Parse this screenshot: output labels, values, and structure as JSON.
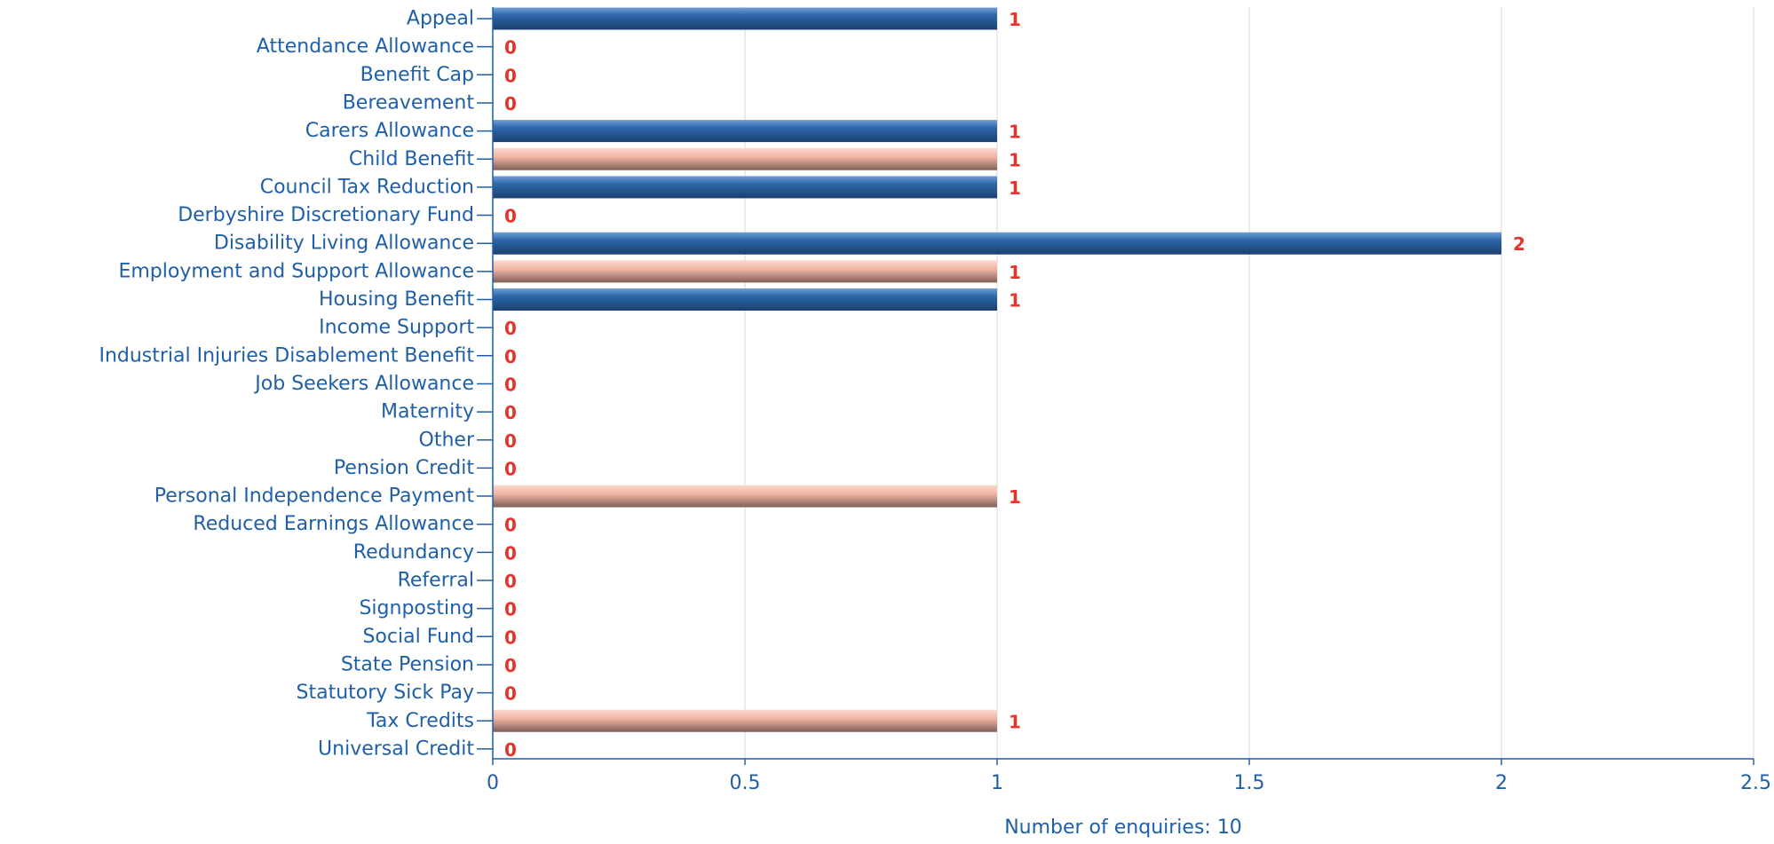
{
  "chart_data": {
    "type": "bar",
    "orientation": "horizontal",
    "categories": [
      "Appeal",
      "Attendance Allowance",
      "Benefit Cap",
      "Bereavement",
      "Carers Allowance",
      "Child Benefit",
      "Council Tax Reduction",
      "Derbyshire Discretionary Fund",
      "Disability Living Allowance",
      "Employment and Support Allowance",
      "Housing Benefit",
      "Income Support",
      "Industrial Injuries Disablement Benefit",
      "Job Seekers Allowance",
      "Maternity",
      "Other",
      "Pension Credit",
      "Personal Independence Payment",
      "Reduced Earnings Allowance",
      "Redundancy",
      "Referral",
      "Signposting",
      "Social Fund",
      "State Pension",
      "Statutory Sick Pay",
      "Tax Credits",
      "Universal Credit"
    ],
    "values": [
      1,
      0,
      0,
      0,
      1,
      1,
      1,
      0,
      2,
      1,
      1,
      0,
      0,
      0,
      0,
      0,
      0,
      1,
      0,
      0,
      0,
      0,
      0,
      0,
      0,
      1,
      0
    ],
    "bar_colors": [
      "blue",
      "blue",
      "blue",
      "blue",
      "blue",
      "salmon",
      "blue",
      "blue",
      "blue",
      "salmon",
      "blue",
      "blue",
      "blue",
      "blue",
      "blue",
      "blue",
      "blue",
      "salmon",
      "blue",
      "blue",
      "blue",
      "blue",
      "blue",
      "blue",
      "blue",
      "salmon",
      "blue"
    ],
    "x_ticks": [
      0,
      0.5,
      1,
      1.5,
      2,
      2.5
    ],
    "x_tick_labels": [
      "0",
      "0.5",
      "1",
      "1.5",
      "2",
      "2.5"
    ],
    "xlim": [
      0,
      2.5
    ],
    "xlabel": "Number of enquiries: 10",
    "title": "",
    "grid": "vertical",
    "colors": {
      "blue_light": "#4f86c6",
      "blue_dark": "#1d4a80",
      "salmon_light": "#f6c8bb",
      "salmon_dark": "#8f6a63",
      "label_text": "#1f5fa8",
      "value_text": "#e8332a",
      "axis": "#1f5fa8",
      "grid": "#d9d9d9"
    }
  }
}
